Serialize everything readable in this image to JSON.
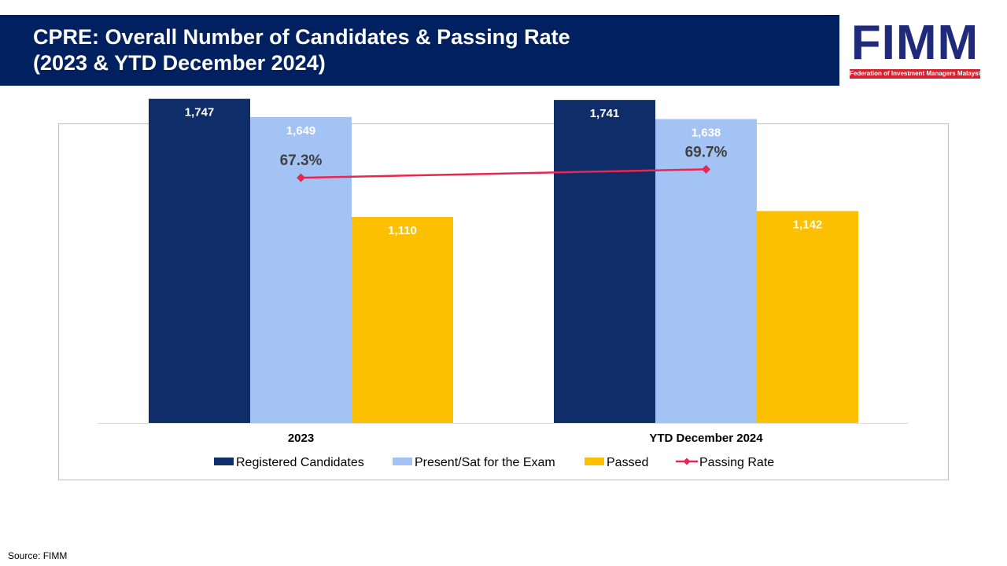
{
  "header": {
    "title_line1": "CPRE: Overall Number of Candidates & Passing Rate",
    "title_line2": "(2023 & YTD December 2024)"
  },
  "logo": {
    "word": "FIMM",
    "subtitle": "Federation of Investment Managers Malaysia"
  },
  "source": "Source: FIMM",
  "colors": {
    "title_band": "#002060",
    "registered": "#0f2d69",
    "present": "#a3c3f5",
    "passed": "#fcc000",
    "passing_rate": "#e8264f"
  },
  "chart_data": {
    "type": "bar",
    "categories": [
      "2023",
      "YTD December 2024"
    ],
    "series": [
      {
        "name": "Registered Candidates",
        "values": [
          1747,
          1741
        ],
        "labels": [
          "1,747",
          "1,741"
        ]
      },
      {
        "name": "Present/Sat for the Exam",
        "values": [
          1649,
          1638
        ],
        "labels": [
          "1,649",
          "1,638"
        ]
      },
      {
        "name": "Passed",
        "values": [
          1110,
          1142
        ],
        "labels": [
          "1,110",
          "1,142"
        ]
      }
    ],
    "line_series": {
      "name": "Passing Rate",
      "values": [
        67.3,
        69.7
      ],
      "labels": [
        "67.3%",
        "69.7%"
      ],
      "unit": "%"
    },
    "ylim": [
      0,
      2000
    ],
    "legend_position": "bottom",
    "grid": false
  }
}
